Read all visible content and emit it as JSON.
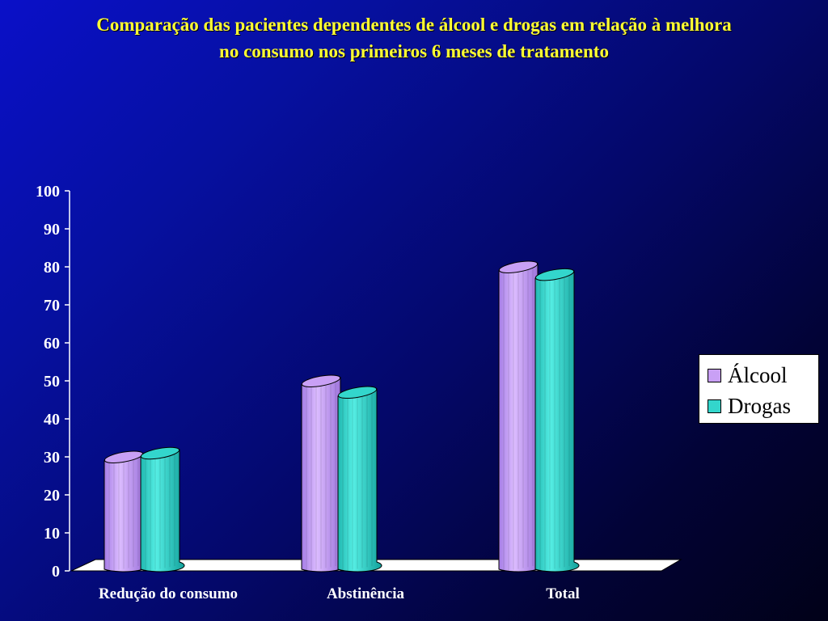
{
  "title_lines": [
    "Comparação das pacientes dependentes de álcool e drogas em relação à melhora",
    "no consumo nos primeiros 6 meses de tratamento"
  ],
  "colors": {
    "alcool": "#c9a0f5",
    "alcool_dark": "#9266d6",
    "drogas": "#33d6cc",
    "drogas_dark": "#11a09a",
    "title": "#ffff33"
  },
  "chart_data": {
    "type": "bar",
    "title": "Comparação das pacientes dependentes de álcool e drogas em relação à melhora no consumo nos primeiros 6 meses de tratamento",
    "categories": [
      "Redução do consumo",
      "Abstinência",
      "Total"
    ],
    "series": [
      {
        "name": "Álcool",
        "values": [
          29,
          49,
          79
        ]
      },
      {
        "name": "Drogas",
        "values": [
          30,
          46,
          77
        ]
      }
    ],
    "ylim": [
      0,
      100
    ],
    "yticks": [
      0,
      10,
      20,
      30,
      40,
      50,
      60,
      70,
      80,
      90,
      100
    ],
    "xlabel": "",
    "ylabel": "",
    "legend_position": "right",
    "grid": false,
    "style": "3d-cylinder"
  }
}
